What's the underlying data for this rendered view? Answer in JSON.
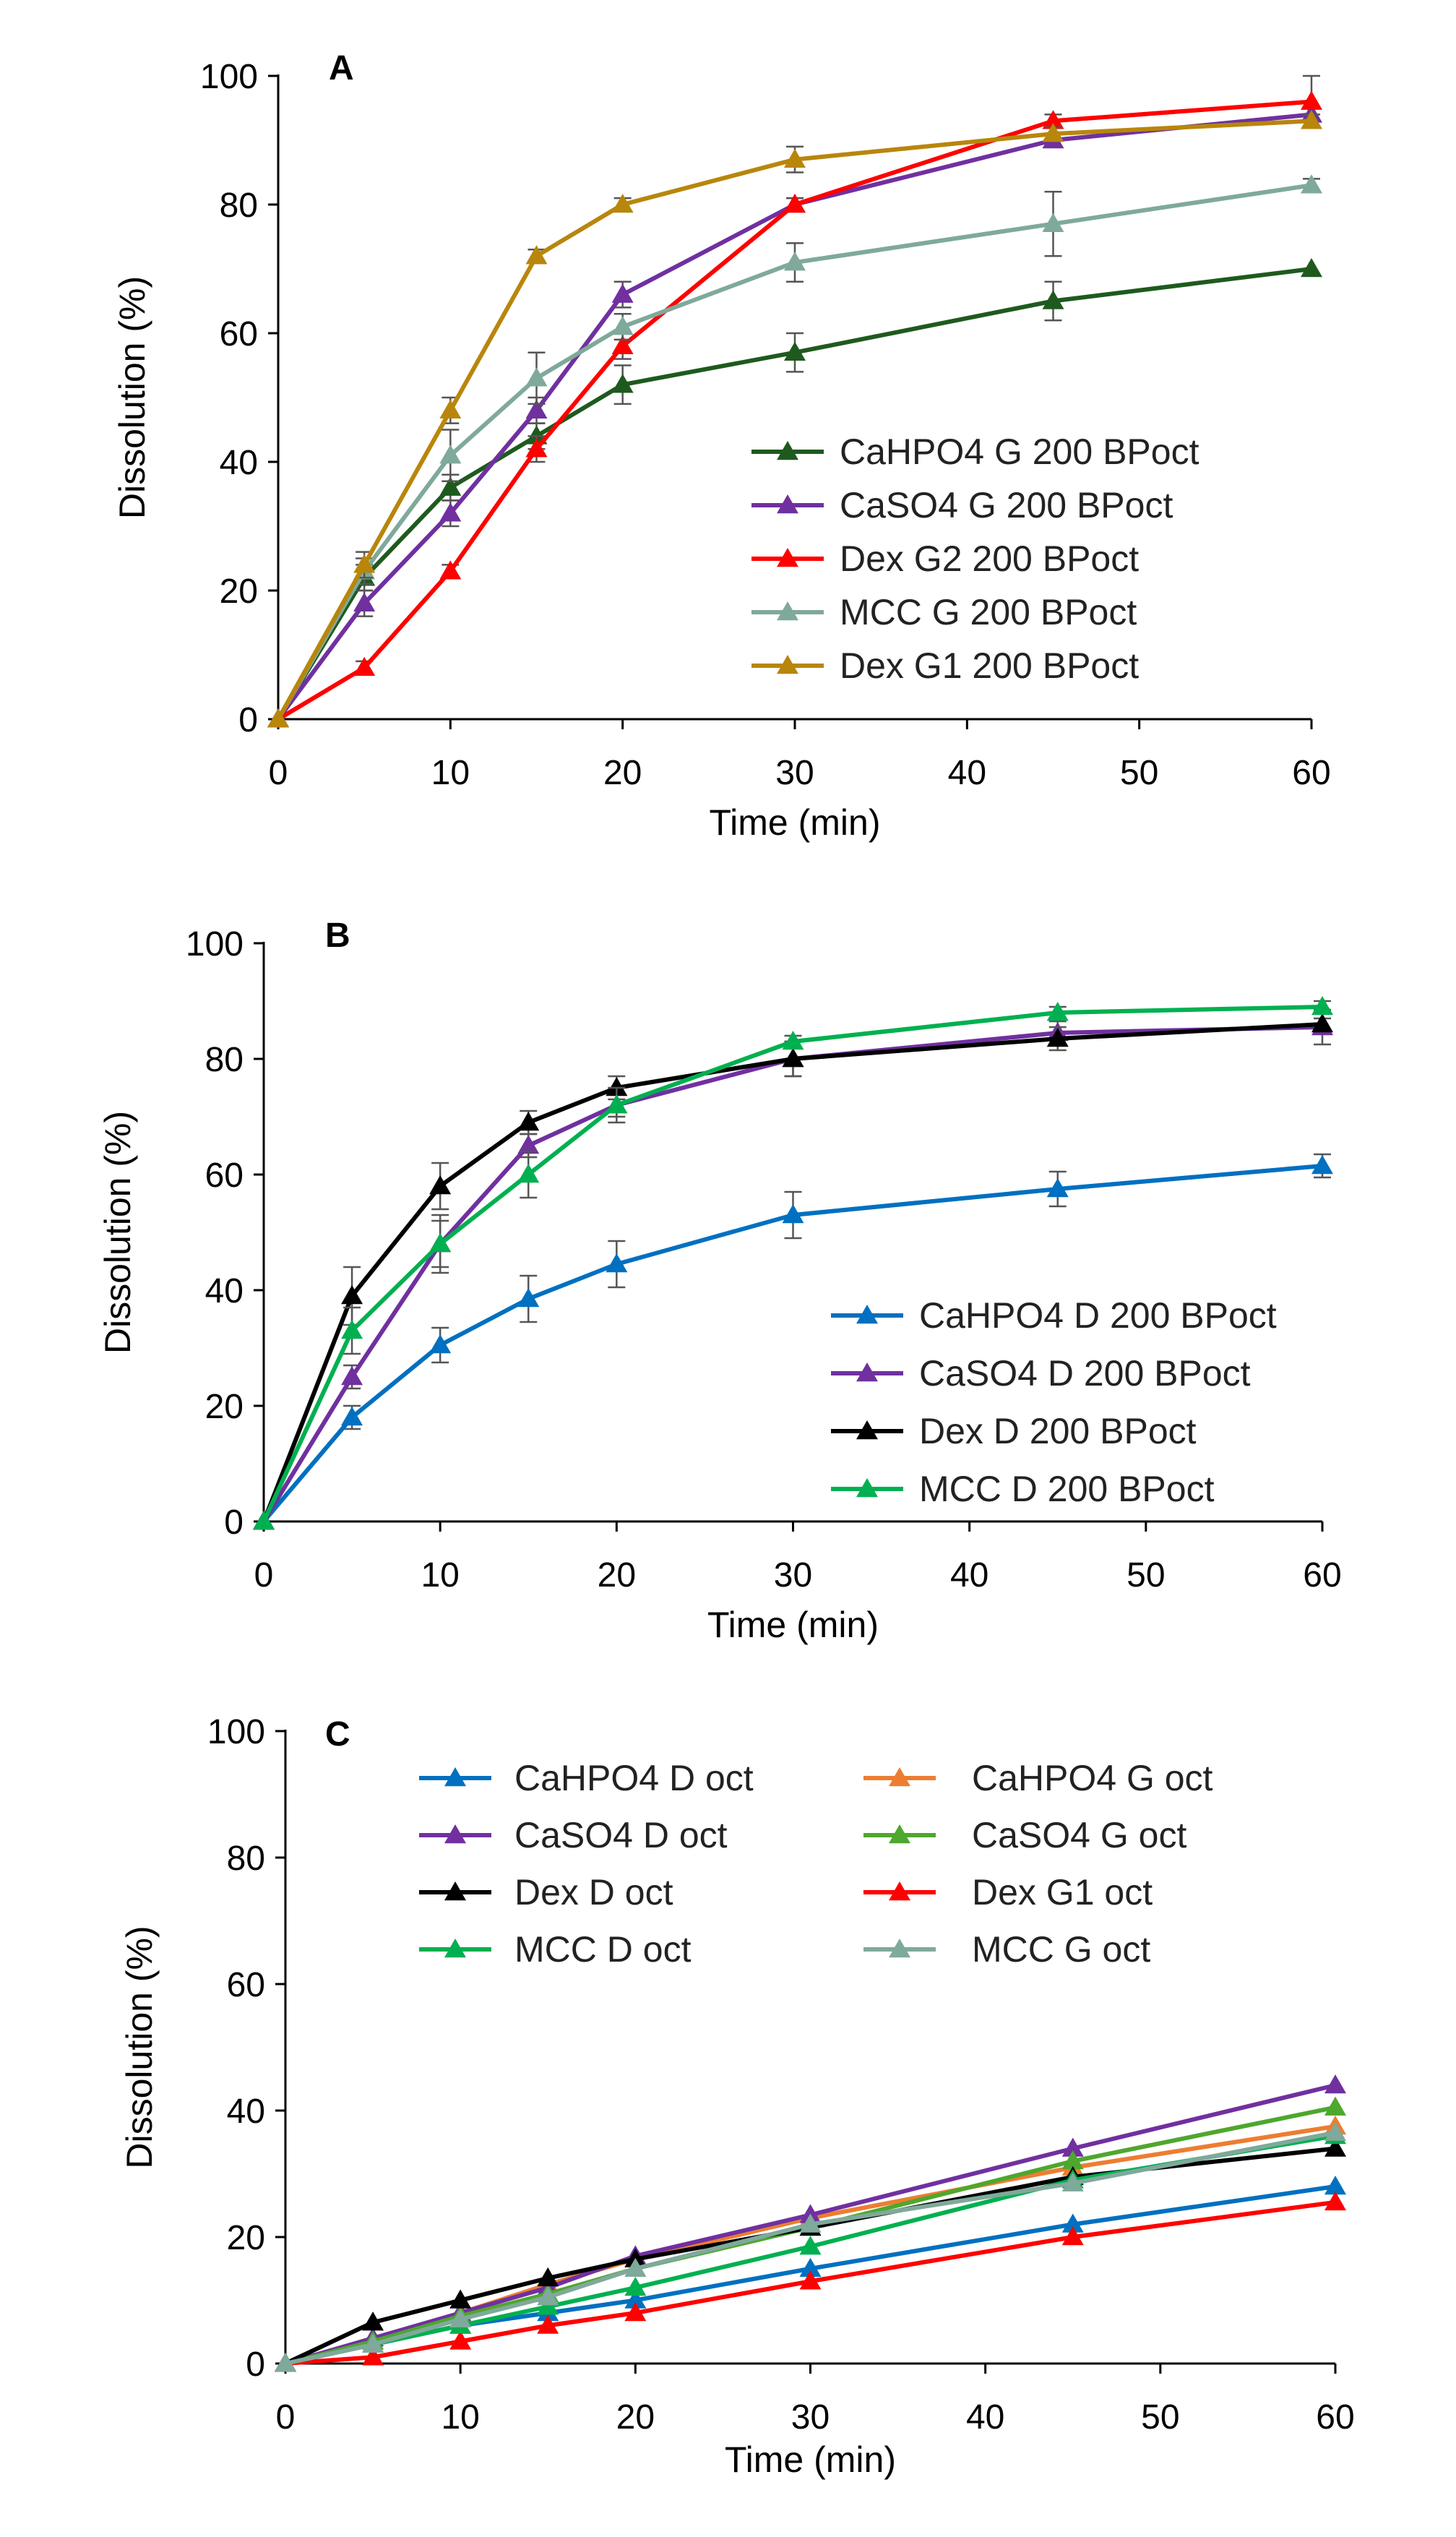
{
  "chart_data": [
    {
      "type": "line",
      "panel_label": "A",
      "xlabel": "Time (min)",
      "ylabel": "Dissolution (%)",
      "xlim": [
        0,
        60
      ],
      "ylim": [
        0,
        100
      ],
      "xticks": [
        0,
        10,
        20,
        30,
        40,
        50,
        60
      ],
      "yticks": [
        0,
        20,
        40,
        60,
        80,
        100
      ],
      "x": [
        0,
        5,
        10,
        15,
        20,
        30,
        45,
        60
      ],
      "legend_position": "bottom-right",
      "series": [
        {
          "name": "CaHPO4 G 200 BPoct",
          "color": "#1e5a1e",
          "values": [
            0,
            22,
            36,
            44,
            52,
            57,
            65,
            70
          ],
          "errors": [
            0,
            2,
            2,
            2,
            3,
            3,
            3,
            0
          ]
        },
        {
          "name": "CaSO4 G 200 BPoct",
          "color": "#7030a0",
          "values": [
            0,
            18,
            32,
            48,
            66,
            80,
            90,
            94
          ],
          "errors": [
            0,
            2,
            2,
            2,
            2,
            1,
            1,
            1
          ]
        },
        {
          "name": "Dex G2 200 BPoct",
          "color": "#ff0000",
          "values": [
            0,
            8,
            23,
            42,
            58,
            80,
            93,
            96
          ],
          "errors": [
            0,
            1,
            1,
            2,
            2,
            1,
            1,
            4
          ]
        },
        {
          "name": "MCC G 200 BPoct",
          "color": "#7fa99b",
          "values": [
            0,
            23,
            41,
            53,
            61,
            71,
            77,
            83
          ],
          "errors": [
            0,
            2,
            4,
            4,
            2,
            3,
            5,
            1
          ]
        },
        {
          "name": "Dex G1 200 BPoct",
          "color": "#b8860b",
          "values": [
            0,
            24,
            48,
            72,
            80,
            87,
            91,
            93
          ],
          "errors": [
            0,
            2,
            2,
            1,
            1,
            2,
            1,
            1
          ]
        }
      ]
    },
    {
      "type": "line",
      "panel_label": "B",
      "xlabel": "Time (min)",
      "ylabel": "Dissolution (%)",
      "xlim": [
        0,
        60
      ],
      "ylim": [
        0,
        100
      ],
      "xticks": [
        0,
        10,
        20,
        30,
        40,
        50,
        60
      ],
      "yticks": [
        0,
        20,
        40,
        60,
        80,
        100
      ],
      "x": [
        0,
        5,
        10,
        15,
        20,
        30,
        45,
        60
      ],
      "legend_position": "bottom-right",
      "series": [
        {
          "name": "CaHPO4 D 200 BPoct",
          "color": "#0070c0",
          "values": [
            0,
            18,
            30.5,
            38.5,
            44.5,
            53,
            57.5,
            61.5
          ],
          "errors": [
            0,
            2,
            3,
            4,
            4,
            4,
            3,
            2
          ]
        },
        {
          "name": "CaSO4 D 200 BPoct",
          "color": "#7030a0",
          "values": [
            0,
            25,
            48,
            65,
            72,
            80,
            84.5,
            85.5
          ],
          "errors": [
            0,
            2,
            4,
            2,
            2,
            3,
            2,
            3
          ]
        },
        {
          "name": "Dex D 200 BPoct",
          "color": "#000000",
          "values": [
            0,
            39,
            58,
            69,
            75,
            80,
            83.5,
            86
          ],
          "errors": [
            0,
            5,
            4,
            2,
            2,
            3,
            2,
            1
          ]
        },
        {
          "name": "MCC D 200 BPoct",
          "color": "#00b050",
          "values": [
            0,
            33,
            48,
            60,
            72,
            83,
            88,
            89
          ],
          "errors": [
            0,
            4,
            5,
            4,
            3,
            1,
            1,
            1
          ]
        }
      ]
    },
    {
      "type": "line",
      "panel_label": "C",
      "xlabel": "Time (min)",
      "ylabel": "Dissolution (%)",
      "xlim": [
        0,
        60
      ],
      "ylim": [
        0,
        100
      ],
      "xticks": [
        0,
        10,
        20,
        30,
        40,
        50,
        60
      ],
      "yticks": [
        0,
        20,
        40,
        60,
        80,
        100
      ],
      "x": [
        0,
        5,
        10,
        15,
        20,
        30,
        45,
        60
      ],
      "legend_position": "top, two columns",
      "series": [
        {
          "name": "CaHPO4 D oct",
          "color": "#0070c0",
          "values": [
            0,
            3,
            6,
            8,
            10,
            15,
            22,
            28
          ],
          "errors": [
            0,
            0,
            0,
            0,
            0,
            0,
            0,
            0
          ]
        },
        {
          "name": "CaHPO4 G oct",
          "color": "#ed7d31",
          "values": [
            0,
            3.5,
            8,
            12.5,
            16.5,
            23,
            31,
            37.5
          ],
          "errors": [
            0,
            0,
            0,
            0,
            0,
            0,
            0,
            0
          ]
        },
        {
          "name": "CaSO4 D oct",
          "color": "#7030a0",
          "values": [
            0,
            4,
            8,
            12,
            17,
            23.5,
            34,
            44
          ],
          "errors": [
            0,
            0,
            0,
            0,
            0,
            0,
            0,
            0
          ]
        },
        {
          "name": "CaSO4 G oct",
          "color": "#4ea72e",
          "values": [
            0,
            3.5,
            7.5,
            11,
            15,
            21.5,
            32,
            40.5
          ],
          "errors": [
            0,
            0,
            0,
            0,
            0,
            0,
            0,
            0
          ]
        },
        {
          "name": "Dex D oct",
          "color": "#000000",
          "values": [
            0,
            6.5,
            10,
            13.5,
            16.5,
            21.5,
            29.5,
            34
          ],
          "errors": [
            0,
            0,
            0,
            0,
            0,
            0,
            0,
            0
          ]
        },
        {
          "name": "Dex G1 oct",
          "color": "#ff0000",
          "values": [
            0,
            1,
            3.5,
            6,
            8,
            13,
            20,
            25.5
          ],
          "errors": [
            0,
            0,
            0,
            0,
            0,
            0,
            0,
            0
          ]
        },
        {
          "name": "MCC D oct",
          "color": "#00b050",
          "values": [
            0,
            3,
            6,
            9,
            12,
            18.5,
            29,
            36
          ],
          "errors": [
            0,
            0,
            0,
            0,
            0,
            0,
            0,
            0
          ]
        },
        {
          "name": "MCC G oct",
          "color": "#7fa99b",
          "values": [
            0,
            3,
            7,
            10.5,
            15,
            22,
            28.5,
            36.5
          ],
          "errors": [
            0,
            0,
            0,
            0,
            0,
            0,
            0,
            0
          ]
        }
      ]
    }
  ]
}
